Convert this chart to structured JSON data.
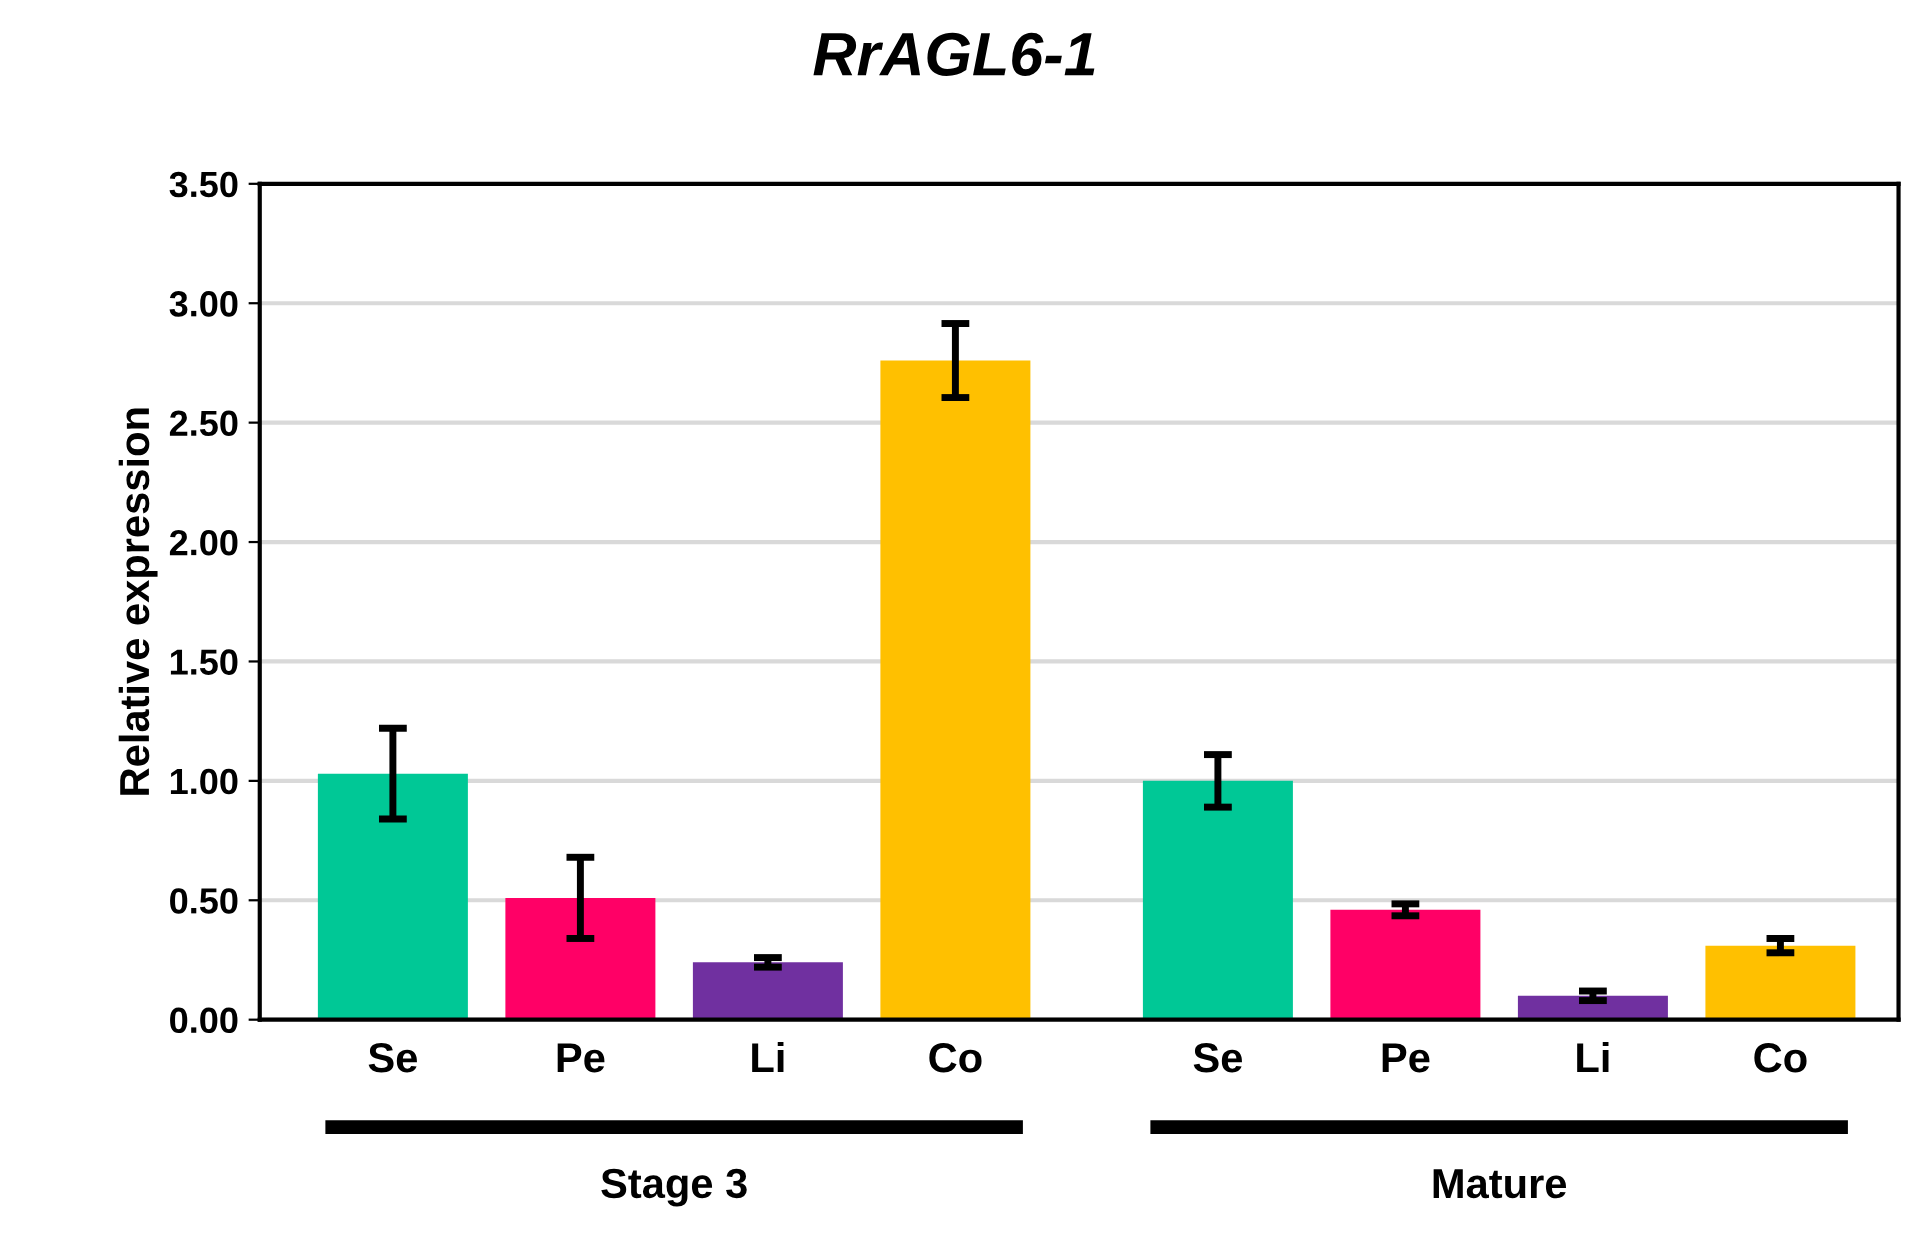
{
  "chart_data": {
    "type": "bar",
    "title": "RrAGL6-1",
    "ylabel": "Relative expression",
    "categories": [
      "Se",
      "Pe",
      "Li",
      "Co",
      "Se",
      "Pe",
      "Li",
      "Co"
    ],
    "values": [
      1.03,
      0.51,
      0.24,
      2.76,
      1.0,
      0.46,
      0.1,
      0.31
    ],
    "errors": [
      0.19,
      0.17,
      0.02,
      0.155,
      0.11,
      0.025,
      0.02,
      0.03
    ],
    "colors": [
      "#00c896",
      "#ff0066",
      "#7030a0",
      "#ffc000",
      "#00c896",
      "#ff0066",
      "#7030a0",
      "#ffc000"
    ],
    "annotations": [
      "Stage 3",
      "Mature"
    ],
    "ylim": [
      0,
      3.5
    ],
    "yticks": [
      {
        "value": 0,
        "label": "0.00"
      },
      {
        "value": 0.5,
        "label": "0.50"
      },
      {
        "value": 1,
        "label": "1.00"
      },
      {
        "value": 1.5,
        "label": "1.50"
      },
      {
        "value": 2,
        "label": "2.00"
      },
      {
        "value": 2.5,
        "label": "2.50"
      },
      {
        "value": 3,
        "label": "3.00"
      },
      {
        "value": 3.5,
        "label": "3.50"
      }
    ],
    "grid": "y"
  }
}
